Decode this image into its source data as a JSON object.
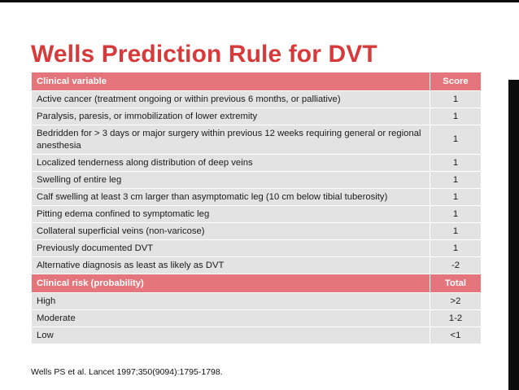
{
  "title": "Wells Prediction Rule for DVT",
  "table": {
    "header": {
      "variable": "Clinical variable",
      "score": "Score"
    },
    "rows": [
      {
        "variable": "Active cancer (treatment ongoing or within previous 6 months, or palliative)",
        "score": "1"
      },
      {
        "variable": "Paralysis, paresis, or immobilization of lower extremity",
        "score": "1"
      },
      {
        "variable": "Bedridden for > 3 days or major surgery within previous 12 weeks requiring general or regional anesthesia",
        "score": "1"
      },
      {
        "variable": "Localized tenderness along distribution of deep veins",
        "score": "1"
      },
      {
        "variable": "Swelling of entire leg",
        "score": "1"
      },
      {
        "variable": "Calf swelling at least 3 cm larger than asymptomatic leg (10 cm below tibial tuberosity)",
        "score": "1"
      },
      {
        "variable": "Pitting edema confined to symptomatic leg",
        "score": "1"
      },
      {
        "variable": "Collateral superficial veins (non-varicose)",
        "score": "1"
      },
      {
        "variable": "Previously documented DVT",
        "score": "1"
      },
      {
        "variable": "Alternative diagnosis as least as likely as DVT",
        "score": "-2"
      }
    ],
    "risk_header": {
      "label": "Clinical risk (probability)",
      "total": "Total"
    },
    "risk_rows": [
      {
        "label": "High",
        "total": ">2"
      },
      {
        "label": "Moderate",
        "total": "1-2"
      },
      {
        "label": "Low",
        "total": "<1"
      }
    ]
  },
  "citation": "Wells PS et al. Lancet 1997;350(9094):1795-1798.",
  "colors": {
    "title": "#d63a3a",
    "header_fill": "#e4757b",
    "row_fill": "#e3e3e3",
    "frame": "#0b0b0b"
  }
}
